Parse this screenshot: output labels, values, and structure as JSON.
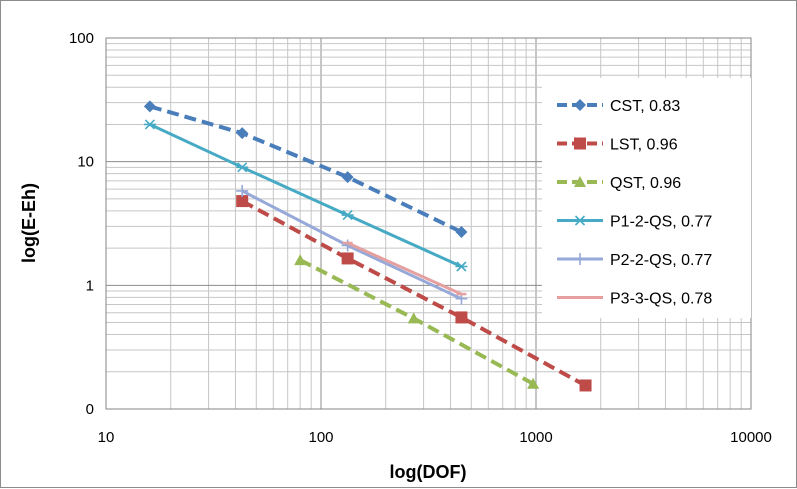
{
  "chart_data": {
    "type": "scatter",
    "title": "",
    "xlabel": "log(DOF)",
    "ylabel": "log(E-Eh)",
    "x_scale": "log",
    "y_scale": "log",
    "xlim": [
      10,
      10000
    ],
    "ylim": [
      0.1,
      100
    ],
    "x_ticks": [
      {
        "value": 10,
        "label": "10"
      },
      {
        "value": 100,
        "label": "100"
      },
      {
        "value": 1000,
        "label": "1000"
      },
      {
        "value": 10000,
        "label": "10000"
      }
    ],
    "y_ticks": [
      {
        "value": 0.1,
        "label": "0"
      },
      {
        "value": 1,
        "label": "1"
      },
      {
        "value": 10,
        "label": "10"
      },
      {
        "value": 100,
        "label": "100"
      }
    ],
    "grid": true,
    "legend_position": "right",
    "series": [
      {
        "name": "CST, 0.83",
        "color": "#4a7ebb",
        "dash": "dashed",
        "marker": "diamond",
        "x": [
          16,
          43,
          133,
          450
        ],
        "y": [
          28,
          17,
          7.5,
          2.7
        ]
      },
      {
        "name": "LST, 0.96",
        "color": "#be4b48",
        "dash": "dashed",
        "marker": "square",
        "x": [
          43,
          133,
          450,
          1700
        ],
        "y": [
          4.8,
          1.65,
          0.55,
          0.155
        ]
      },
      {
        "name": "QST, 0.96",
        "color": "#98b954",
        "dash": "dashed",
        "marker": "triangle",
        "x": [
          80,
          270,
          970
        ],
        "y": [
          1.6,
          0.54,
          0.16
        ]
      },
      {
        "name": "P1-2-QS, 0.77",
        "color": "#46aac5",
        "dash": "solid",
        "marker": "asterisk",
        "x": [
          16,
          43,
          133,
          450
        ],
        "y": [
          20,
          9,
          3.7,
          1.42
        ]
      },
      {
        "name": "P2-2-QS, 0.77",
        "color": "#96a9d8",
        "dash": "solid",
        "marker": "plus",
        "x": [
          43,
          133,
          450
        ],
        "y": [
          5.8,
          2.1,
          0.78
        ]
      },
      {
        "name": "P3-3-QS, 0.78",
        "color": "#e5a09f",
        "dash": "solid",
        "marker": "dash",
        "x": [
          133,
          450
        ],
        "y": [
          2.2,
          0.85
        ]
      }
    ]
  }
}
